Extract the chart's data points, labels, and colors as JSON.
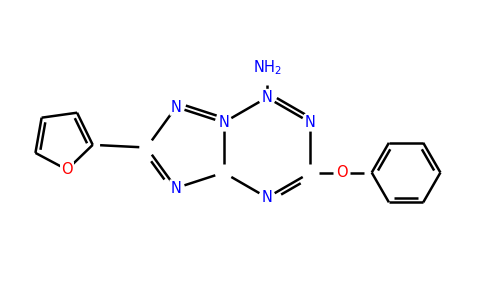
{
  "background_color": "#ffffff",
  "bond_color": "#000000",
  "n_color": "#0000ff",
  "o_color": "#ff0000",
  "lw": 1.8,
  "figsize": [
    4.84,
    3.0
  ],
  "dpi": 100,
  "xlim": [
    0,
    9.68
  ],
  "ylim": [
    0,
    6.0
  ]
}
